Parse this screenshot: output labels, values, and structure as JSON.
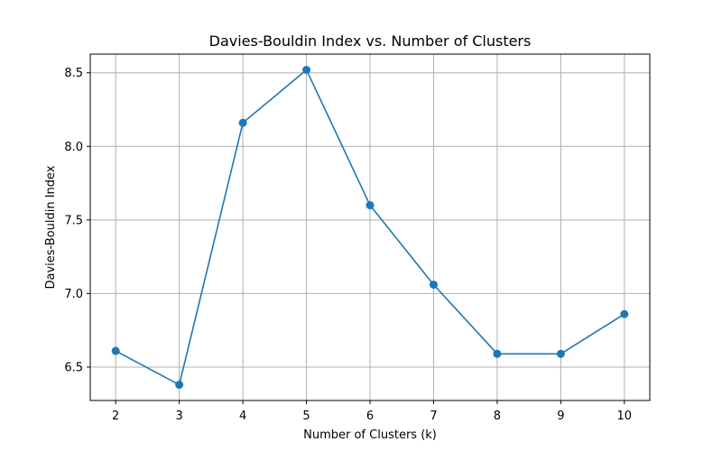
{
  "chart_data": {
    "type": "line",
    "title": "Davies-Bouldin Index vs. Number of Clusters",
    "xlabel": "Number of Clusters (k)",
    "ylabel": "Davies-Bouldin Index",
    "x": [
      2,
      3,
      4,
      5,
      6,
      7,
      8,
      9,
      10
    ],
    "series": [
      {
        "values": [
          6.61,
          6.38,
          8.16,
          8.52,
          7.6,
          7.06,
          6.59,
          6.59,
          6.86
        ],
        "color": "#1f77b4"
      }
    ],
    "xticks": [
      "2",
      "3",
      "4",
      "5",
      "6",
      "7",
      "8",
      "9",
      "10"
    ],
    "yticks": [
      "6.5",
      "7.0",
      "7.5",
      "8.0",
      "8.5"
    ],
    "xlim": [
      1.6,
      10.4
    ],
    "ylim": [
      6.273,
      8.627
    ],
    "grid": true,
    "marker": "circle"
  }
}
